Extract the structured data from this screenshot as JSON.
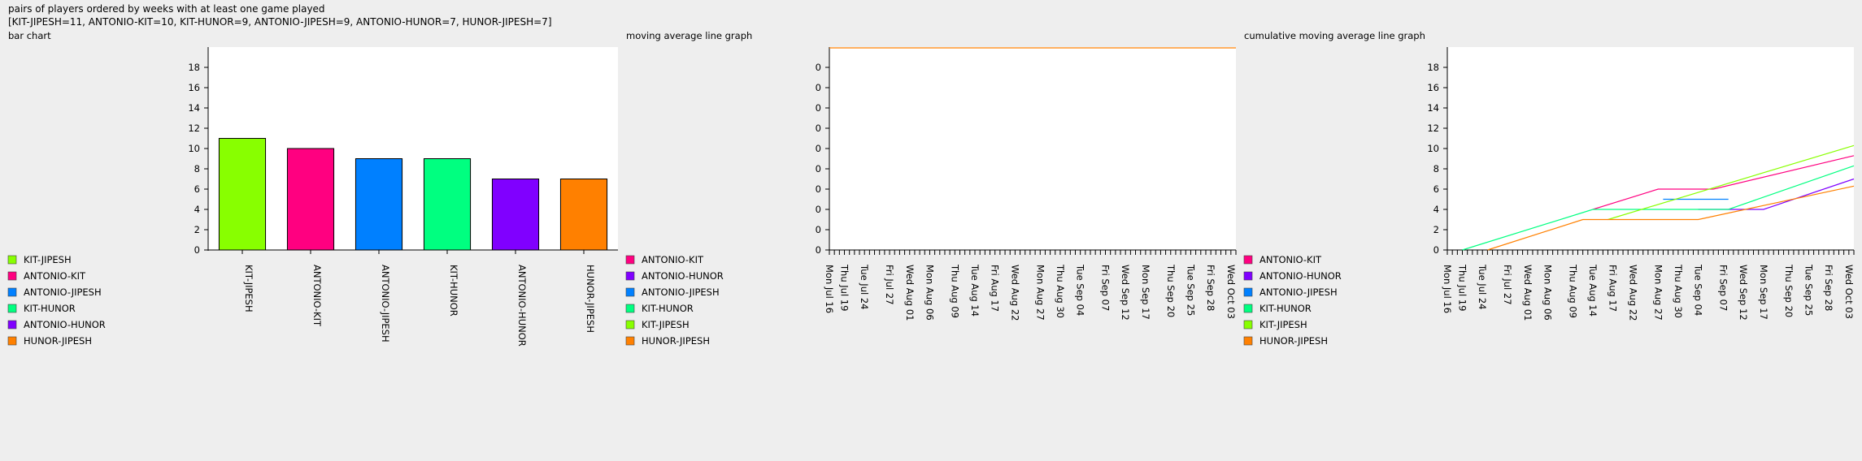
{
  "page": {
    "title": "pairs of players ordered by weeks with at least one game played",
    "summary": "[KIT-JIPESH=11, ANTONIO-KIT=10, KIT-HUNOR=9, ANTONIO-JIPESH=9, ANTONIO-HUNOR=7, HUNOR-JIPESH=7]"
  },
  "colors": {
    "KIT-JIPESH": "#88ff00",
    "ANTONIO-KIT": "#ff0080",
    "ANTONIO-JIPESH": "#0080ff",
    "KIT-HUNOR": "#00ff80",
    "ANTONIO-HUNOR": "#8000ff",
    "HUNOR-JIPESH": "#ff8000"
  },
  "chart_data": [
    {
      "type": "bar",
      "title": "bar chart",
      "categories": [
        "KIT-JIPESH",
        "ANTONIO-KIT",
        "ANTONIO-JIPESH",
        "KIT-HUNOR",
        "ANTONIO-HUNOR",
        "HUNOR-JIPESH"
      ],
      "values": [
        11,
        10,
        9,
        9,
        7,
        7
      ],
      "ylim": [
        0,
        20
      ],
      "yticks": [
        "0",
        "2",
        "4",
        "6",
        "8",
        "10",
        "12",
        "14",
        "16",
        "18"
      ],
      "legend": [
        "KIT-JIPESH",
        "ANTONIO-KIT",
        "ANTONIO-JIPESH",
        "KIT-HUNOR",
        "ANTONIO-HUNOR",
        "HUNOR-JIPESH"
      ],
      "legend_position": "left"
    },
    {
      "type": "line",
      "title": "moving average line graph",
      "yticks": [
        "0",
        "0",
        "0",
        "0",
        "0",
        "0",
        "0",
        "0",
        "0",
        "0"
      ],
      "x_start": "2018-07-16",
      "x_end": "2018-10-05",
      "xticks": [
        "Mon Jul 16",
        "Thu Jul 19",
        "Tue Jul 24",
        "Fri Jul 27",
        "Wed Aug 01",
        "Mon Aug 06",
        "Thu Aug 09",
        "Tue Aug 14",
        "Fri Aug 17",
        "Wed Aug 22",
        "Mon Aug 27",
        "Thu Aug 30",
        "Tue Sep 04",
        "Fri Sep 07",
        "Wed Sep 12",
        "Mon Sep 17",
        "Thu Sep 20",
        "Tue Sep 25",
        "Fri Sep 28",
        "Wed Oct 03"
      ],
      "series": [
        {
          "name": "HUNOR-JIPESH",
          "points": [
            [
              "2018-07-16",
              1
            ],
            [
              "2018-10-05",
              1
            ]
          ]
        }
      ],
      "legend": [
        "ANTONIO-KIT",
        "ANTONIO-HUNOR",
        "ANTONIO-JIPESH",
        "KIT-HUNOR",
        "KIT-JIPESH",
        "HUNOR-JIPESH"
      ],
      "legend_position": "left"
    },
    {
      "type": "line",
      "title": "cumulative moving average line graph",
      "ylim": [
        0,
        20
      ],
      "yticks": [
        "0",
        "2",
        "4",
        "6",
        "8",
        "10",
        "12",
        "14",
        "16",
        "18"
      ],
      "x_start": "2018-07-16",
      "x_end": "2018-10-05",
      "xticks": [
        "Mon Jul 16",
        "Thu Jul 19",
        "Tue Jul 24",
        "Fri Jul 27",
        "Wed Aug 01",
        "Mon Aug 06",
        "Thu Aug 09",
        "Tue Aug 14",
        "Fri Aug 17",
        "Wed Aug 22",
        "Mon Aug 27",
        "Thu Aug 30",
        "Tue Sep 04",
        "Fri Sep 07",
        "Wed Sep 12",
        "Mon Sep 17",
        "Thu Sep 20",
        "Tue Sep 25",
        "Fri Sep 28",
        "Wed Oct 03"
      ],
      "series": [
        {
          "name": "ANTONIO-KIT",
          "points": [
            [
              "2018-08-14",
              4
            ],
            [
              "2018-08-27",
              6
            ],
            [
              "2018-09-07",
              6
            ],
            [
              "2018-10-05",
              9.3
            ]
          ]
        },
        {
          "name": "ANTONIO-HUNOR",
          "points": [
            [
              "2018-09-04",
              4
            ],
            [
              "2018-09-17",
              4
            ],
            [
              "2018-10-05",
              7
            ]
          ]
        },
        {
          "name": "ANTONIO-JIPESH",
          "points": [
            [
              "2018-08-28",
              5
            ],
            [
              "2018-09-10",
              5
            ]
          ]
        },
        {
          "name": "KIT-HUNOR",
          "points": [
            [
              "2018-07-19",
              0
            ],
            [
              "2018-08-14",
              4
            ],
            [
              "2018-09-10",
              4
            ],
            [
              "2018-10-05",
              8.3
            ]
          ]
        },
        {
          "name": "KIT-JIPESH",
          "points": [
            [
              "2018-08-17",
              3
            ],
            [
              "2018-10-05",
              10.3
            ]
          ]
        },
        {
          "name": "HUNOR-JIPESH",
          "points": [
            [
              "2018-07-24",
              0
            ],
            [
              "2018-08-12",
              3
            ],
            [
              "2018-09-04",
              3
            ],
            [
              "2018-10-05",
              6.3
            ]
          ]
        }
      ],
      "legend": [
        "ANTONIO-KIT",
        "ANTONIO-HUNOR",
        "ANTONIO-JIPESH",
        "KIT-HUNOR",
        "KIT-JIPESH",
        "HUNOR-JIPESH"
      ],
      "legend_position": "left"
    }
  ]
}
